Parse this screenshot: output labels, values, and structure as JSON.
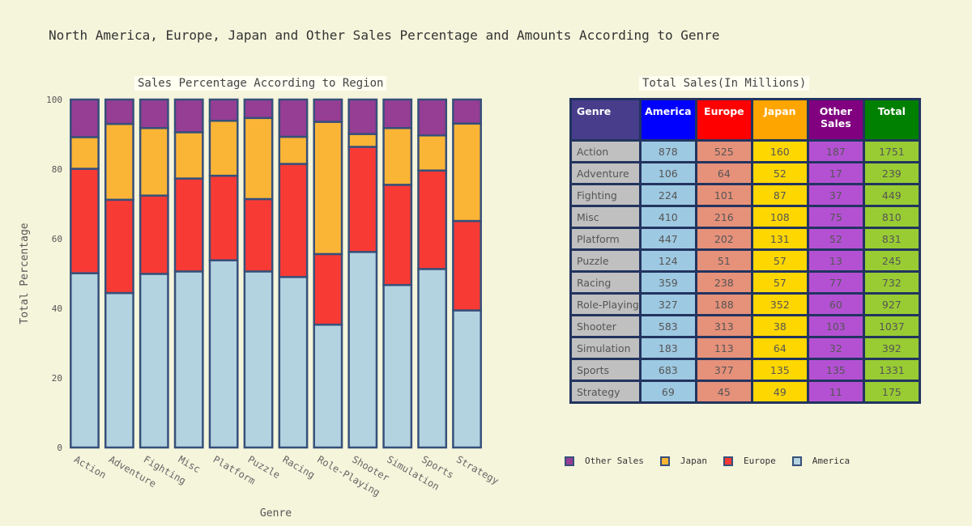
{
  "title": "North America, Europe, Japan and Other Sales Percentage and Amounts According to Genre",
  "chart_data": [
    {
      "type": "bar",
      "stacked": true,
      "title": "Sales Percentage According to Region",
      "xlabel": "Genre",
      "ylabel": "Total Percentage",
      "ylim": [
        0,
        100
      ],
      "yticks": [
        0,
        20,
        40,
        60,
        80,
        100
      ],
      "categories": [
        "Action",
        "Adventure",
        "Fighting",
        "Misc",
        "Platform",
        "Puzzle",
        "Racing",
        "Role-Playing",
        "Shooter",
        "Simulation",
        "Sports",
        "Strategy"
      ],
      "series": [
        {
          "name": "America",
          "color": "#b4d3e1",
          "values": [
            50.1,
            44.4,
            49.9,
            50.6,
            53.8,
            50.6,
            49.0,
            35.3,
            56.2,
            46.7,
            51.3,
            39.4
          ]
        },
        {
          "name": "Europe",
          "color": "#f83a35",
          "values": [
            30.0,
            26.8,
            22.5,
            26.7,
            24.3,
            20.8,
            32.5,
            20.3,
            30.2,
            28.8,
            28.3,
            25.7
          ]
        },
        {
          "name": "Japan",
          "color": "#fbb536",
          "values": [
            9.1,
            21.8,
            19.4,
            13.3,
            15.8,
            23.3,
            7.8,
            38.0,
            3.7,
            16.3,
            10.1,
            28.0
          ]
        },
        {
          "name": "Other Sales",
          "color": "#963d94",
          "values": [
            10.8,
            7.0,
            8.2,
            9.4,
            6.1,
            5.3,
            10.7,
            6.4,
            9.9,
            8.2,
            10.3,
            6.9
          ]
        }
      ],
      "legend": "bottom"
    },
    {
      "type": "table",
      "title": "Total Sales(In Millions)",
      "columns": [
        "Genre",
        "America",
        "Europe",
        "Japan",
        "Other Sales",
        "Total"
      ],
      "header_colors": [
        "#483d8b",
        "#0000ff",
        "#ff0000",
        "#ffa500",
        "#800080",
        "#008000"
      ],
      "cell_colors": [
        "#c0c0c0",
        "#9ec9e2",
        "#e6917a",
        "#ffd700",
        "#b451d3",
        "#99cc33"
      ],
      "rows": [
        [
          "Action",
          "878",
          "525",
          "160",
          "187",
          "1751"
        ],
        [
          "Adventure",
          "106",
          "64",
          "52",
          "17",
          "239"
        ],
        [
          "Fighting",
          "224",
          "101",
          "87",
          "37",
          "449"
        ],
        [
          "Misc",
          "410",
          "216",
          "108",
          "75",
          "810"
        ],
        [
          "Platform",
          "447",
          "202",
          "131",
          "52",
          "831"
        ],
        [
          "Puzzle",
          "124",
          "51",
          "57",
          "13",
          "245"
        ],
        [
          "Racing",
          "359",
          "238",
          "57",
          "77",
          "732"
        ],
        [
          "Role-Playing",
          "327",
          "188",
          "352",
          "60",
          "927"
        ],
        [
          "Shooter",
          "583",
          "313",
          "38",
          "103",
          "1037"
        ],
        [
          "Simulation",
          "183",
          "113",
          "64",
          "32",
          "392"
        ],
        [
          "Sports",
          "683",
          "377",
          "135",
          "135",
          "1331"
        ],
        [
          "Strategy",
          "69",
          "45",
          "49",
          "11",
          "175"
        ]
      ]
    }
  ],
  "legend": [
    {
      "name": "Other Sales",
      "color": "#963d94"
    },
    {
      "name": "Japan",
      "color": "#fbb536"
    },
    {
      "name": "Europe",
      "color": "#f83a35"
    },
    {
      "name": "America",
      "color": "#b4d3e1"
    }
  ]
}
